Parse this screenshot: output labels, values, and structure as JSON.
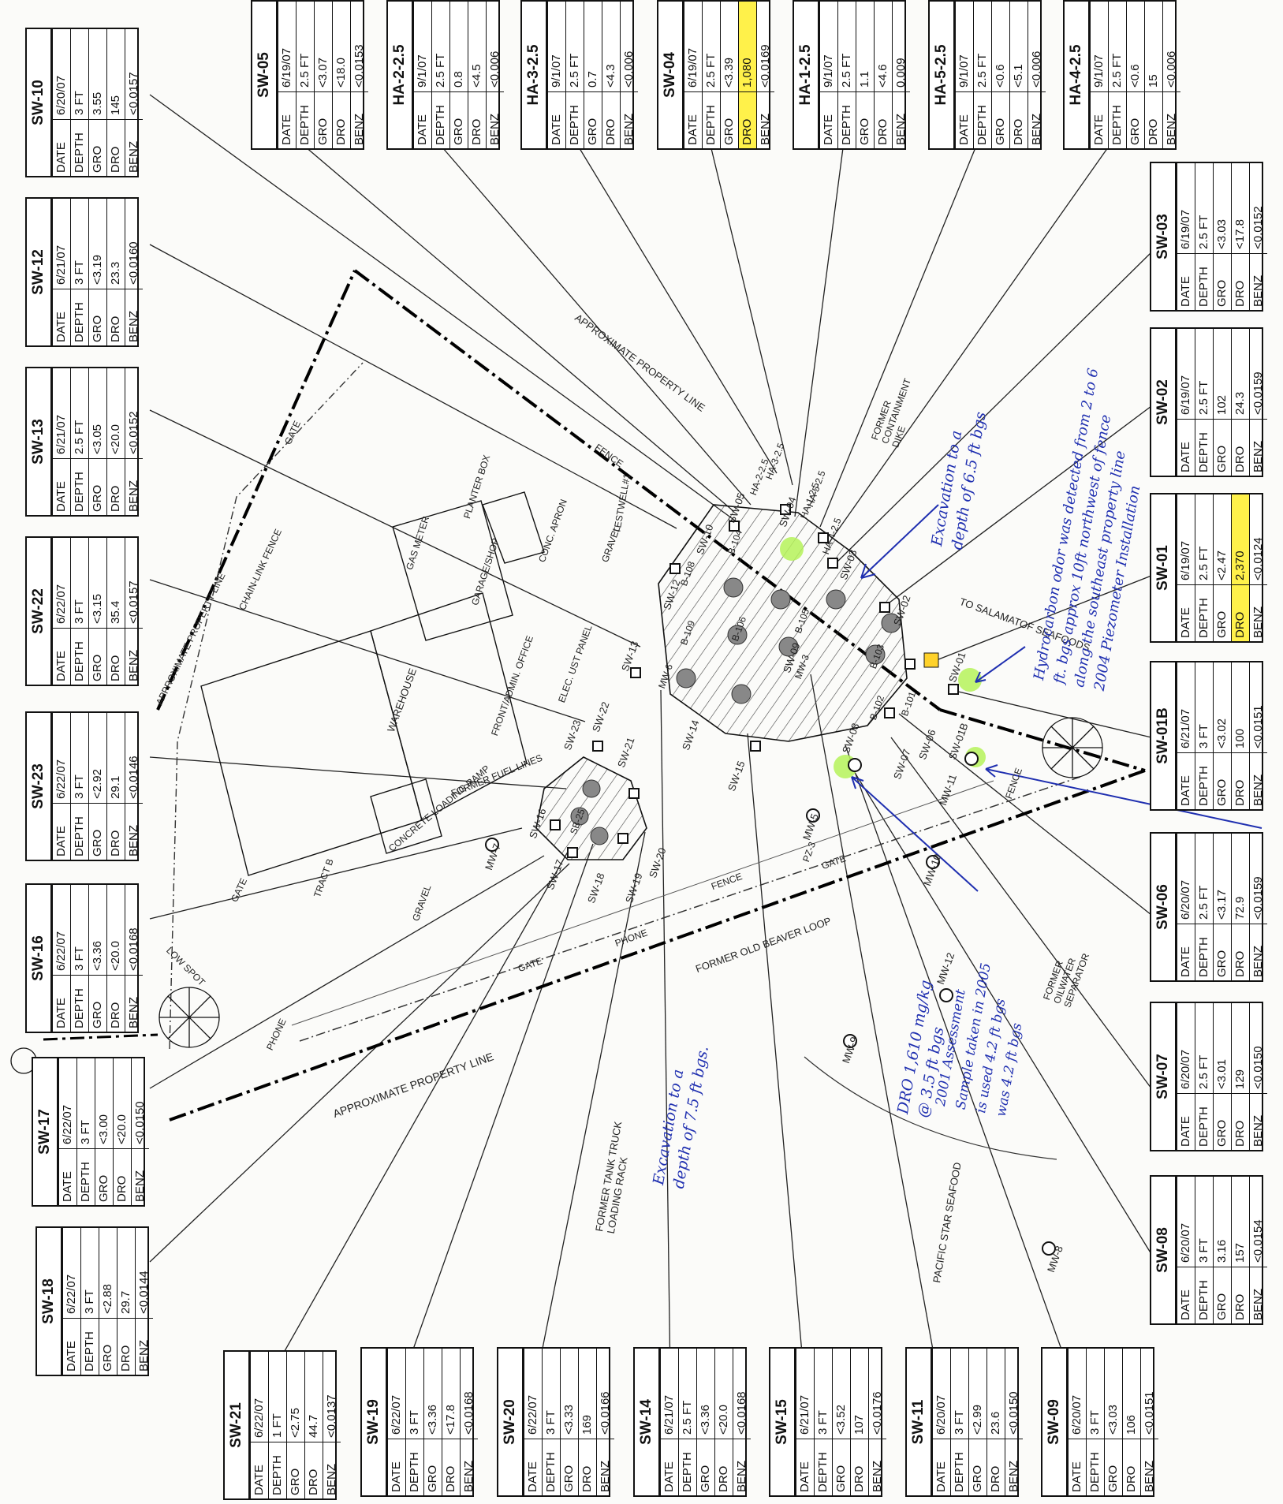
{
  "row_labels": [
    "DATE",
    "DEPTH",
    "GRO",
    "DRO",
    "BENZ"
  ],
  "highlight_color": "#fff14a",
  "annotation_color": "#1f2fb0",
  "tables": {
    "sw10": {
      "title": "SW-10",
      "date": "6/20/07",
      "depth": "3 FT",
      "gro": "3.55",
      "dro": "145",
      "benz": "<0.0157"
    },
    "sw12": {
      "title": "SW-12",
      "date": "6/21/07",
      "depth": "3 FT",
      "gro": "<3.19",
      "dro": "23.3",
      "benz": "<0.0160"
    },
    "sw13": {
      "title": "SW-13",
      "date": "6/21/07",
      "depth": "2.5 FT",
      "gro": "<3.05",
      "dro": "<20.0",
      "benz": "<0.0152"
    },
    "sw22": {
      "title": "SW-22",
      "date": "6/22/07",
      "depth": "3 FT",
      "gro": "<3.15",
      "dro": "35.4",
      "benz": "<0.0157"
    },
    "sw23": {
      "title": "SW-23",
      "date": "6/22/07",
      "depth": "3 FT",
      "gro": "<2.92",
      "dro": "29.1",
      "benz": "<0.0146"
    },
    "sw16": {
      "title": "SW-16",
      "date": "6/22/07",
      "depth": "3 FT",
      "gro": "<3.36",
      "dro": "<20.0",
      "benz": "<0.0168"
    },
    "sw17": {
      "title": "SW-17",
      "date": "6/22/07",
      "depth": "3 FT",
      "gro": "<3.00",
      "dro": "<20.0",
      "benz": "<0.0150"
    },
    "sw18": {
      "title": "SW-18",
      "date": "6/22/07",
      "depth": "3 FT",
      "gro": "<2.88",
      "dro": "29.7",
      "benz": "<0.0144"
    },
    "sw05": {
      "title": "SW-05",
      "date": "6/19/07",
      "depth": "2.5 FT",
      "gro": "<3.07",
      "dro": "<18.0",
      "benz": "<0.0153"
    },
    "ha22": {
      "title": "HA-2-2.5",
      "date": "9/1/07",
      "depth": "2.5 FT",
      "gro": "0.8",
      "dro": "<4.5",
      "benz": "<0.006"
    },
    "ha32": {
      "title": "HA-3-2.5",
      "date": "9/1/07",
      "depth": "2.5 FT",
      "gro": "0.7",
      "dro": "<4.3",
      "benz": "<0.006"
    },
    "sw04": {
      "title": "SW-04",
      "date": "6/19/07",
      "depth": "2.5 FT",
      "gro": "<3.39",
      "dro": "1,080",
      "benz": "<0.0169"
    },
    "ha12": {
      "title": "HA-1-2.5",
      "date": "9/1/07",
      "depth": "2.5 FT",
      "gro": "1.1",
      "dro": "<4.6",
      "benz": "0.009"
    },
    "ha52": {
      "title": "HA-5-2.5",
      "date": "9/1/07",
      "depth": "2.5 FT",
      "gro": "<0.6",
      "dro": "<5.1",
      "benz": "<0.006"
    },
    "ha42": {
      "title": "HA-4-2.5",
      "date": "9/1/07",
      "depth": "2.5 FT",
      "gro": "<0.6",
      "dro": "15",
      "benz": "<0.006"
    },
    "sw03": {
      "title": "SW-03",
      "date": "6/19/07",
      "depth": "2.5 FT",
      "gro": "<3.03",
      "dro": "<17.8",
      "benz": "<0.0152"
    },
    "sw02": {
      "title": "SW-02",
      "date": "6/19/07",
      "depth": "2.5 FT",
      "gro": "102",
      "dro": "24.3",
      "benz": "<0.0159"
    },
    "sw01": {
      "title": "SW-01",
      "date": "6/19/07",
      "depth": "2.5 FT",
      "gro": "<2.47",
      "dro": "2,370",
      "benz": "<0.0124"
    },
    "sw01b": {
      "title": "SW-01B",
      "date": "6/21/07",
      "depth": "3 FT",
      "gro": "<3.02",
      "dro": "100",
      "benz": "<0.0151"
    },
    "sw06": {
      "title": "SW-06",
      "date": "6/20/07",
      "depth": "2.5 FT",
      "gro": "<3.17",
      "dro": "72.9",
      "benz": "<0.0159"
    },
    "sw07": {
      "title": "SW-07",
      "date": "6/20/07",
      "depth": "2.5 FT",
      "gro": "<3.01",
      "dro": "129",
      "benz": "<0.0150"
    },
    "sw08": {
      "title": "SW-08",
      "date": "6/20/07",
      "depth": "3 FT",
      "gro": "3.16",
      "dro": "157",
      "benz": "<0.0154"
    },
    "sw21": {
      "title": "SW-21",
      "date": "6/22/07",
      "depth": "1 FT",
      "gro": "<2.75",
      "dro": "44.7",
      "benz": "<0.0137"
    },
    "sw19": {
      "title": "SW-19",
      "date": "6/22/07",
      "depth": "3 FT",
      "gro": "<3.36",
      "dro": "<17.8",
      "benz": "<0.0168"
    },
    "sw20": {
      "title": "SW-20",
      "date": "6/22/07",
      "depth": "3 FT",
      "gro": "<3.33",
      "dro": "169",
      "benz": "<0.0166"
    },
    "sw14": {
      "title": "SW-14",
      "date": "6/21/07",
      "depth": "2.5 FT",
      "gro": "<3.36",
      "dro": "<20.0",
      "benz": "<0.0168"
    },
    "sw15": {
      "title": "SW-15",
      "date": "6/21/07",
      "depth": "3 FT",
      "gro": "<3.52",
      "dro": "107",
      "benz": "<0.0176"
    },
    "sw11": {
      "title": "SW-11",
      "date": "6/20/07",
      "depth": "3 FT",
      "gro": "<2.99",
      "dro": "23.6",
      "benz": "<0.0150"
    },
    "sw09": {
      "title": "SW-09",
      "date": "6/20/07",
      "depth": "3 FT",
      "gro": "<3.03",
      "dro": "106",
      "benz": "<0.0151"
    }
  },
  "map_labels": {
    "approx_property_line": "APPROXIMATE PROPERTY LINE",
    "approx_property_line_top": "APPROXIMATE PROPERTY LINE",
    "approx_property_line_left": "APPROXIMATE PROPERTY LINE",
    "chain_link_fence": "CHAIN-LINK FENCE",
    "gate": "GATE",
    "fence": "FENCE",
    "warehouse": "WAREHOUSE",
    "front_admin_office": "FRONT/ADMIN. OFFICE",
    "garage_shop": "GARAGE/SHOP",
    "planter_box": "PLANTER BOX",
    "gas_meter": "GAS METER",
    "conc_apron": "CONC. APRON",
    "concrete_loading_ramp": "CONCRETE LOADING RAMP",
    "former_fuel_lines": "FORMER FUEL LINES",
    "elec_ust_panel": "ELEC. UST PANEL",
    "tract_b": "TRACT B",
    "gravel": "GRAVEL",
    "low_spot": "LOW SPOT",
    "phone": "PHONE",
    "former_old_beaver_loop": "FORMER OLD BEAVER LOOP",
    "former_oilwater_separator": "FORMER OILWATER SEPARATOR",
    "pacific_star_seafood": "PACIFIC STAR SEAFOOD",
    "former_tank_truck_loading_rack": "FORMER TANK TRUCK LOADING RACK",
    "to_salamatof_seafoods": "TO SALAMATOF SEAFOODS",
    "former_containment_dike": "FORMER CONTAINMENT DIKE",
    "testwell_1": "TESTWELL#1",
    "mw_7": "MW-7",
    "mw_5": "MW-5",
    "mw_10": "MW-10",
    "mw_12": "MW-12",
    "mw_8": "MW-8",
    "mw_9": "MW-9",
    "mw_11": "MW-11",
    "mw_6": "MW-6",
    "mw_3": "MW-3",
    "pz_3": "PZ-3",
    "sw_16": "SW-16",
    "sw_17": "SW-17",
    "sw_18": "SW-18",
    "sw_19": "SW-19",
    "sw_20": "SW-20",
    "sw_21": "SW-21",
    "sw_22": "SW-22",
    "sw_23": "SW-23",
    "sb_25": "SB-25",
    "sw_13": "SW-13",
    "sw_14": "SW-14",
    "sw_15": "SW-15",
    "sw_12": "SW-12",
    "sw_10": "SW-10",
    "sw_09": "SW-09",
    "sw_08": "SW-08",
    "sw_07": "SW-07",
    "sw_06": "SW-06",
    "sw_05": "SW-05",
    "sw_04": "SW-04",
    "sw_03": "SW-03",
    "sw_02": "SW-02",
    "sw_01": "SW-01",
    "sw_01b": "SW-01B",
    "b_104": "B-104",
    "b_105": "B-105",
    "b_106": "B-106",
    "b_103": "B-103",
    "b_102": "B-102",
    "b_101": "B-101",
    "b_108": "B-108",
    "b_109": "B-109",
    "ha_1": "HA-1-2.5",
    "ha_2": "HA-2-2.5",
    "ha_3": "HA-3-2.5",
    "ha_4": "HA-4-2.5",
    "ha_5": "HA-5-2.5"
  },
  "annotations": {
    "excavation_6_5": "Excavation to a\ndepth of 6.5 ft bgs",
    "hydrocarbon_odor": "Hydrocarbon odor was detected from 2 to 6\nft. bgs approx 10ft northwest of fence\nalong the southeast property line\n2004 Piezometer Installation",
    "excavation_7_5": "Excavation to a\ndepth of 7.5 ft bgs.",
    "dro_note": "DRO 1,610 mg/kg\n@ 3.5 ft bgs",
    "assessment_2001": "2001 Assessment\nSample taken in 2005\nis used 4.2 ft bgs\nwas 4.2 ft bgs"
  }
}
